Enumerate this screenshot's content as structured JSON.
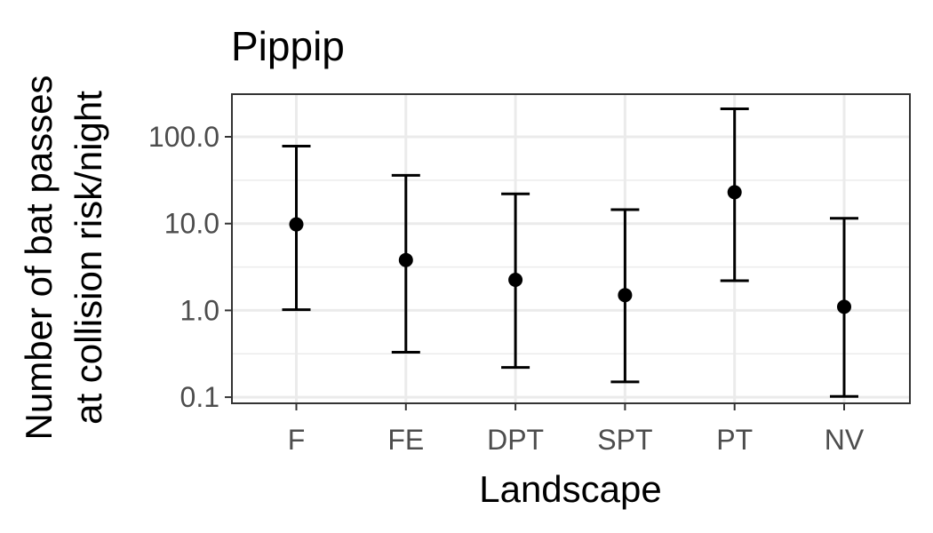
{
  "chart_data": {
    "type": "scatter",
    "title": "Pippip",
    "xlabel": "Landscape",
    "ylabel_lines": [
      "Number of bat passes",
      "at collision risk/night"
    ],
    "y_scale": "log10",
    "ylim": [
      0.085,
      310
    ],
    "y_ticks": [
      {
        "value": 0.1,
        "label": "0.1"
      },
      {
        "value": 1,
        "label": "1.0"
      },
      {
        "value": 10,
        "label": "10.0"
      },
      {
        "value": 100,
        "label": "100.0"
      }
    ],
    "y_minor_ticks": [
      0.316,
      3.16,
      31.6
    ],
    "grid": true,
    "categories": [
      "F",
      "FE",
      "DPT",
      "SPT",
      "PT",
      "NV"
    ],
    "points": [
      {
        "category": "F",
        "estimate": 9.8,
        "lower": 1.02,
        "upper": 78
      },
      {
        "category": "FE",
        "estimate": 3.8,
        "lower": 0.33,
        "upper": 36
      },
      {
        "category": "DPT",
        "estimate": 2.25,
        "lower": 0.22,
        "upper": 22
      },
      {
        "category": "SPT",
        "estimate": 1.5,
        "lower": 0.15,
        "upper": 14.5
      },
      {
        "category": "PT",
        "estimate": 23,
        "lower": 2.2,
        "upper": 210
      },
      {
        "category": "NV",
        "estimate": 1.1,
        "lower": 0.102,
        "upper": 11.5
      }
    ],
    "colors": {
      "point": "#000000",
      "errorbar": "#000000",
      "grid": "#ebebeb",
      "panel_border": "#333333"
    }
  }
}
